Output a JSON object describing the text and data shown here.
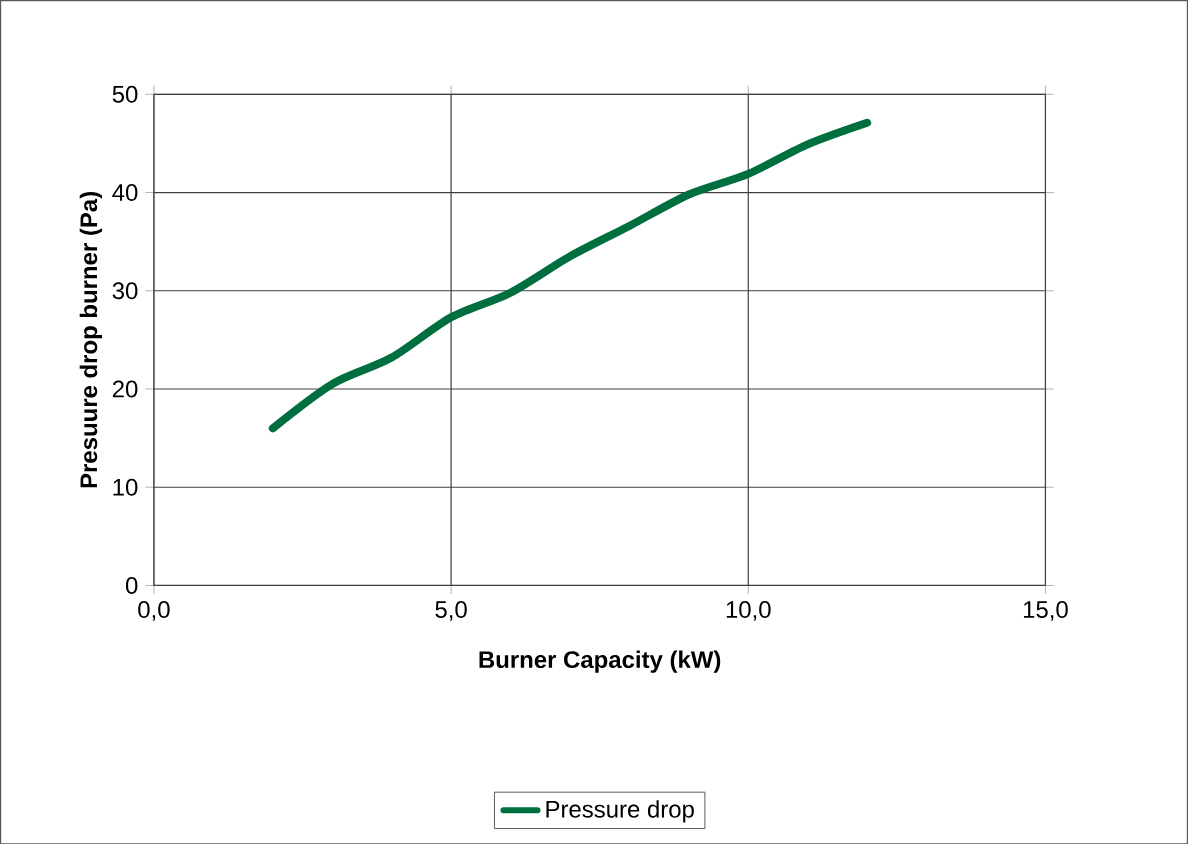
{
  "chart_data": {
    "type": "line",
    "xlabel": "Burner Capacity (kW)",
    "ylabel": "Presuure drop burner (Pa)",
    "xlim": [
      0,
      15
    ],
    "xticks": [
      {
        "value": 0,
        "label": "0,0"
      },
      {
        "value": 5,
        "label": "5,0"
      },
      {
        "value": 10,
        "label": "10,0"
      },
      {
        "value": 15,
        "label": "15,0"
      }
    ],
    "ylim": [
      0,
      50
    ],
    "yticks": [
      0,
      10,
      20,
      30,
      40,
      50
    ],
    "grid": true,
    "legend": "bottom",
    "marker": "none",
    "line_style": "solid",
    "x": [
      2,
      3,
      4,
      5,
      6,
      7,
      8,
      9,
      10,
      11,
      12
    ],
    "series": [
      {
        "name": "Pressure drop",
        "color": "#006f3f",
        "values": [
          16,
          20.5,
          23.2,
          27.3,
          29.8,
          33.5,
          36.6,
          39.8,
          41.9,
          44.9,
          47.1
        ]
      }
    ]
  }
}
